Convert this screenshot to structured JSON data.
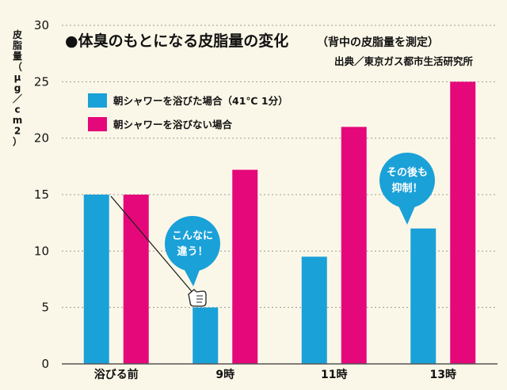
{
  "chart_data": {
    "type": "bar",
    "title": "●体臭のもとになる皮脂量の変化",
    "subtitle": "（背中の皮脂量を測定）",
    "source": "出典／東京ガス都市生活研究所",
    "ylabel_lines": [
      "皮",
      "脂",
      "量",
      "（",
      "μ",
      "g",
      "／",
      "c",
      "m",
      "2",
      "）"
    ],
    "ylim": [
      0,
      30
    ],
    "yticks": [
      0,
      5,
      10,
      15,
      20,
      25,
      30
    ],
    "grid": true,
    "legend_position": "top-left",
    "categories": [
      "浴びる前",
      "9時",
      "11時",
      "13時"
    ],
    "series": [
      {
        "name": "朝シャワーを浴びた場合（41℃ 1分）",
        "color": "#1aa1d8",
        "values": [
          15,
          5,
          9.5,
          12
        ]
      },
      {
        "name": "朝シャワーを浴びない場合",
        "color": "#e5087a",
        "values": [
          15,
          17.2,
          21,
          25
        ]
      }
    ],
    "annotations": [
      {
        "lines": [
          "こんなに",
          "違う！"
        ],
        "color": "#1aa1d8"
      },
      {
        "lines": [
          "その後も",
          "抑制！"
        ],
        "color": "#1aa1d8"
      }
    ]
  }
}
